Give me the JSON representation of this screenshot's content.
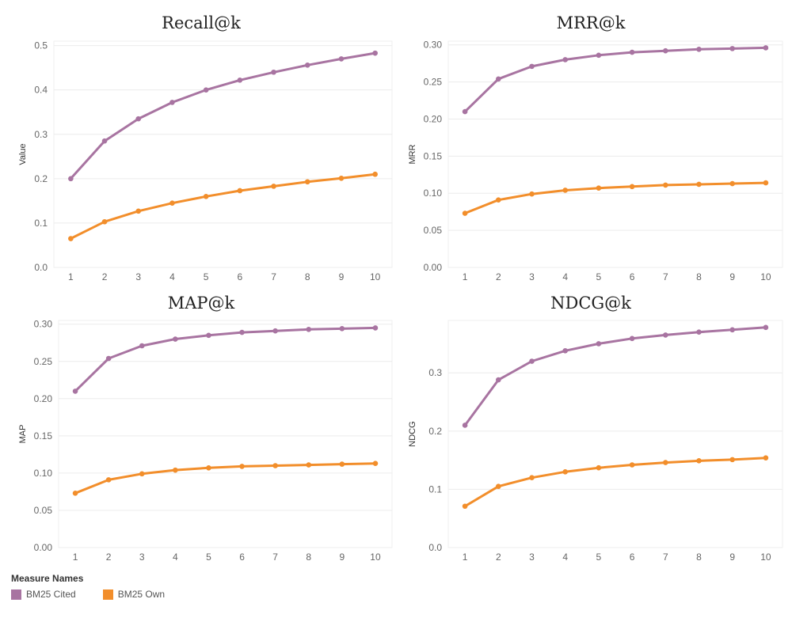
{
  "legend": {
    "title": "Measure Names",
    "items": [
      {
        "label": "BM25 Cited",
        "color": "#a874a1"
      },
      {
        "label": "BM25 Own",
        "color": "#f28e2b"
      }
    ]
  },
  "chart_data": [
    {
      "type": "line",
      "title": "Recall@k",
      "xlabel": "",
      "ylabel": "Value",
      "x": [
        1,
        2,
        3,
        4,
        5,
        6,
        7,
        8,
        9,
        10
      ],
      "ylim": [
        0,
        0.51
      ],
      "yticks": [
        0.0,
        0.1,
        0.2,
        0.3,
        0.4,
        0.5
      ],
      "ytick_labels": [
        "0.0",
        "0.1",
        "0.2",
        "0.3",
        "0.4",
        "0.5"
      ],
      "grid": true,
      "series": [
        {
          "name": "BM25 Cited",
          "color": "#a874a1",
          "values": [
            0.2,
            0.285,
            0.335,
            0.372,
            0.4,
            0.422,
            0.44,
            0.456,
            0.47,
            0.483
          ]
        },
        {
          "name": "BM25 Own",
          "color": "#f28e2b",
          "values": [
            0.065,
            0.103,
            0.127,
            0.145,
            0.16,
            0.173,
            0.183,
            0.193,
            0.201,
            0.21
          ]
        }
      ]
    },
    {
      "type": "line",
      "title": "MRR@k",
      "xlabel": "",
      "ylabel": "MRR",
      "x": [
        1,
        2,
        3,
        4,
        5,
        6,
        7,
        8,
        9,
        10
      ],
      "ylim": [
        0,
        0.305
      ],
      "yticks": [
        0.0,
        0.05,
        0.1,
        0.15,
        0.2,
        0.25,
        0.3
      ],
      "ytick_labels": [
        "0.00",
        "0.05",
        "0.10",
        "0.15",
        "0.20",
        "0.25",
        "0.30"
      ],
      "grid": true,
      "series": [
        {
          "name": "BM25 Cited",
          "color": "#a874a1",
          "values": [
            0.21,
            0.254,
            0.271,
            0.28,
            0.286,
            0.29,
            0.292,
            0.294,
            0.295,
            0.296
          ]
        },
        {
          "name": "BM25 Own",
          "color": "#f28e2b",
          "values": [
            0.073,
            0.091,
            0.099,
            0.104,
            0.107,
            0.109,
            0.111,
            0.112,
            0.113,
            0.114
          ]
        }
      ]
    },
    {
      "type": "line",
      "title": "MAP@k",
      "xlabel": "",
      "ylabel": "MAP",
      "x": [
        1,
        2,
        3,
        4,
        5,
        6,
        7,
        8,
        9,
        10
      ],
      "ylim": [
        0,
        0.305
      ],
      "yticks": [
        0.0,
        0.05,
        0.1,
        0.15,
        0.2,
        0.25,
        0.3
      ],
      "ytick_labels": [
        "0.00",
        "0.05",
        "0.10",
        "0.15",
        "0.20",
        "0.25",
        "0.30"
      ],
      "grid": true,
      "series": [
        {
          "name": "BM25 Cited",
          "color": "#a874a1",
          "values": [
            0.21,
            0.254,
            0.271,
            0.28,
            0.285,
            0.289,
            0.291,
            0.293,
            0.294,
            0.295
          ]
        },
        {
          "name": "BM25 Own",
          "color": "#f28e2b",
          "values": [
            0.073,
            0.091,
            0.099,
            0.104,
            0.107,
            0.109,
            0.11,
            0.111,
            0.112,
            0.113
          ]
        }
      ]
    },
    {
      "type": "line",
      "title": "NDCG@k",
      "xlabel": "",
      "ylabel": "NDCG",
      "x": [
        1,
        2,
        3,
        4,
        5,
        6,
        7,
        8,
        9,
        10
      ],
      "ylim": [
        0,
        0.39
      ],
      "yticks": [
        0.0,
        0.1,
        0.2,
        0.3
      ],
      "ytick_labels": [
        "0.0",
        "0.1",
        "0.2",
        "0.3"
      ],
      "grid": true,
      "series": [
        {
          "name": "BM25 Cited",
          "color": "#a874a1",
          "values": [
            0.21,
            0.288,
            0.32,
            0.338,
            0.35,
            0.359,
            0.365,
            0.37,
            0.374,
            0.378
          ]
        },
        {
          "name": "BM25 Own",
          "color": "#f28e2b",
          "values": [
            0.071,
            0.105,
            0.12,
            0.13,
            0.137,
            0.142,
            0.146,
            0.149,
            0.151,
            0.154
          ]
        }
      ]
    }
  ]
}
